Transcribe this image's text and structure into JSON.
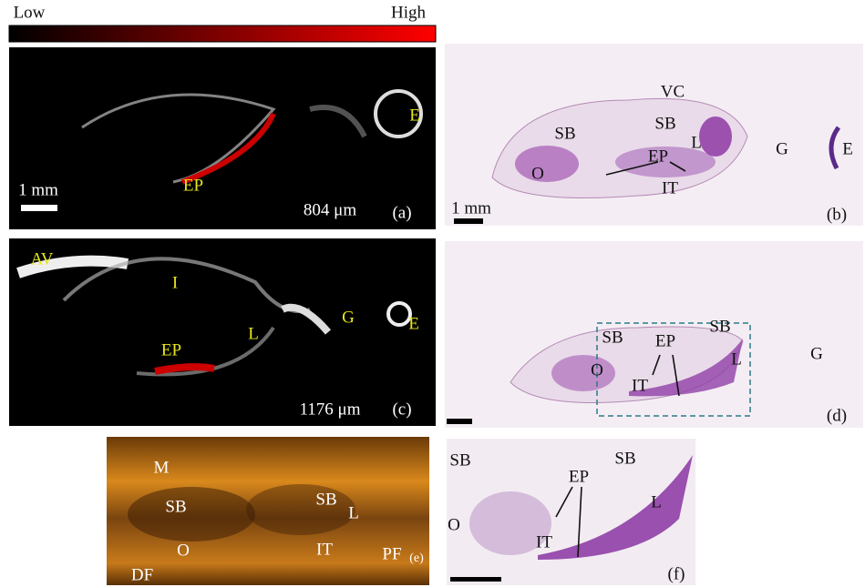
{
  "colorbar": {
    "low": "Low",
    "high": "High"
  },
  "panels": [
    {
      "letter": "(a)",
      "labels": [
        "E",
        "EP"
      ],
      "scale_label": "1 mm",
      "depth": "804 μm"
    },
    {
      "letter": "(b)",
      "labels": [
        "VC",
        "SB",
        "SB",
        "L",
        "G",
        "E",
        "EP",
        "O",
        "IT"
      ],
      "scale_label": "1 mm"
    },
    {
      "letter": "(c)",
      "labels": [
        "AV",
        "I",
        "E",
        "G",
        "L",
        "EP"
      ],
      "depth": "1176 μm"
    },
    {
      "letter": "(d)",
      "labels": [
        "SB",
        "SB",
        "EP",
        "L",
        "O",
        "IT",
        "G"
      ]
    },
    {
      "letter": "(e)",
      "labels": [
        "M",
        "SB",
        "SB",
        "L",
        "O",
        "IT",
        "PF",
        "DF"
      ]
    },
    {
      "letter": "(f)",
      "labels": [
        "SB",
        "SB",
        "EP",
        "L",
        "O",
        "IT"
      ]
    }
  ]
}
